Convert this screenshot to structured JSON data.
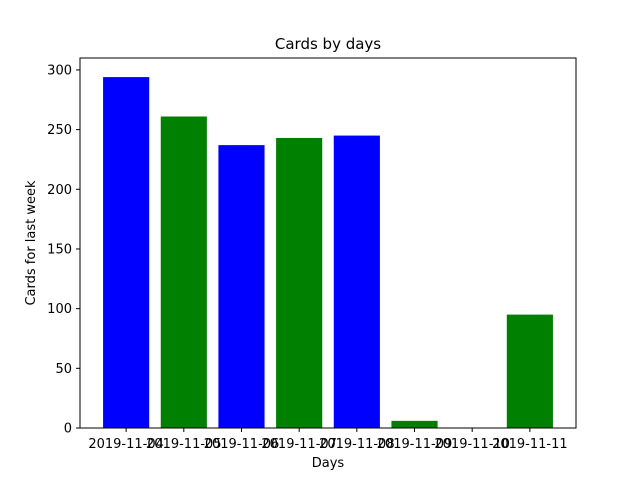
{
  "chart_data": {
    "type": "bar",
    "title": "Cards by days",
    "xlabel": "Days",
    "ylabel": "Cards for last week",
    "categories": [
      "2019-11-04",
      "2019-11-05",
      "2019-11-06",
      "2019-11-07",
      "2019-11-08",
      "2019-11-09",
      "2019-11-10",
      "2019-11-11"
    ],
    "values": [
      294,
      261,
      237,
      243,
      245,
      6,
      0,
      95
    ],
    "bar_colors": [
      "#0000ff",
      "#008000",
      "#0000ff",
      "#008000",
      "#0000ff",
      "#008000",
      "#0000ff",
      "#008000"
    ],
    "ylim": [
      0,
      310
    ],
    "yticks": [
      0,
      50,
      100,
      150,
      200,
      250,
      300
    ],
    "grid": false,
    "legend": "none"
  }
}
